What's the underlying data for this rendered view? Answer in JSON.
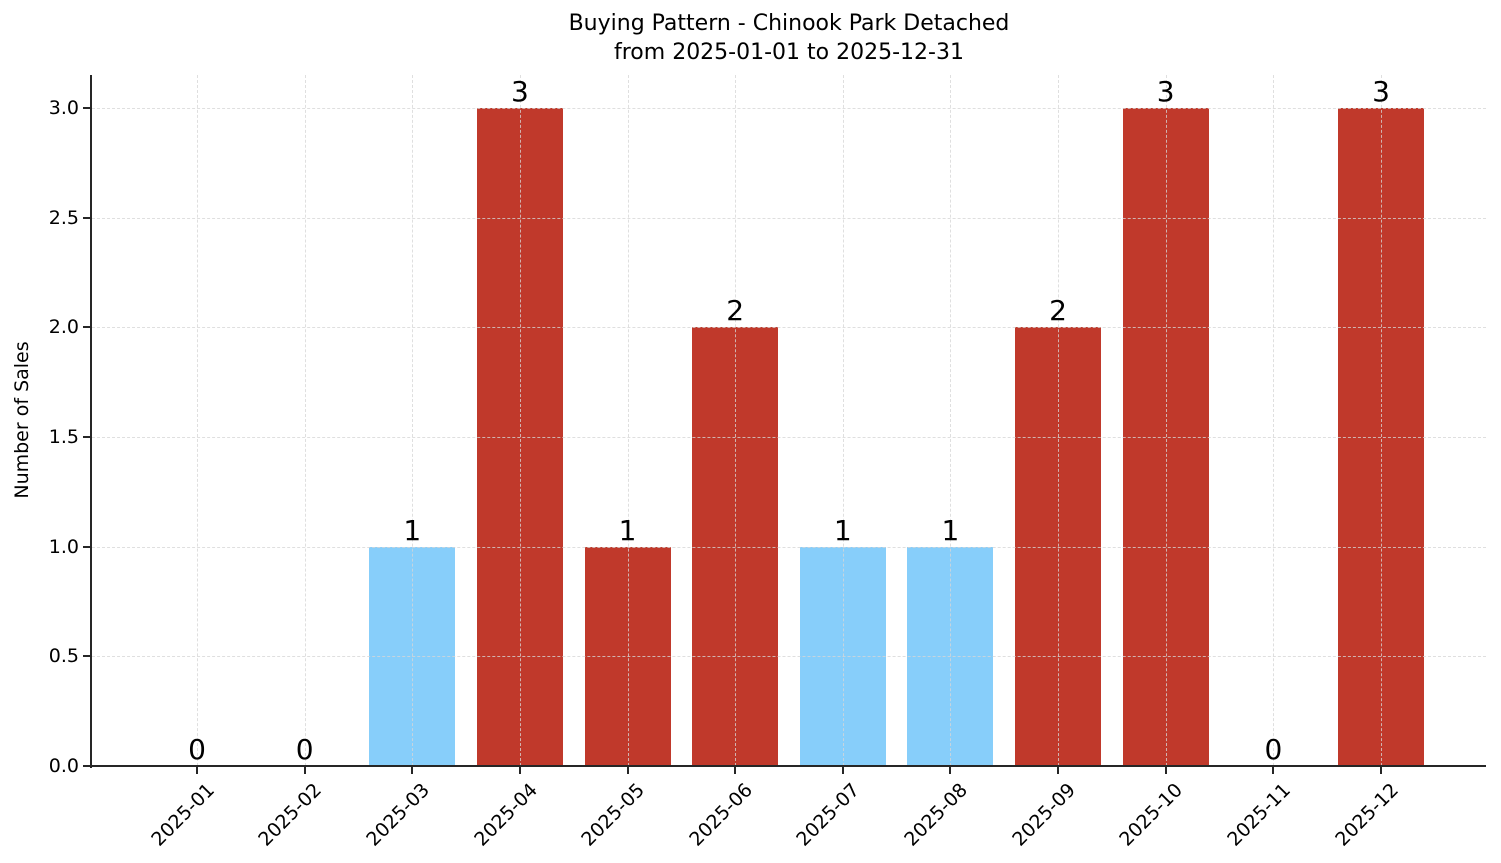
{
  "chart_data": {
    "type": "bar",
    "title": "Buying Pattern - Chinook Park Detached",
    "subtitle": "from 2025-01-01 to 2025-12-31",
    "xlabel": "",
    "ylabel": "Number of Sales",
    "categories": [
      "2025-01",
      "2025-02",
      "2025-03",
      "2025-04",
      "2025-05",
      "2025-06",
      "2025-07",
      "2025-08",
      "2025-09",
      "2025-10",
      "2025-11",
      "2025-12"
    ],
    "values": [
      0,
      0,
      1,
      3,
      1,
      2,
      1,
      1,
      2,
      3,
      0,
      3
    ],
    "value_labels": [
      "0",
      "0",
      "1",
      "3",
      "1",
      "2",
      "1",
      "1",
      "2",
      "3",
      "0",
      "3"
    ],
    "bar_colors": [
      null,
      null,
      "#87cefa",
      "#c0392b",
      "#c0392b",
      "#c0392b",
      "#87cefa",
      "#87cefa",
      "#c0392b",
      "#c0392b",
      null,
      "#c0392b"
    ],
    "ytick_labels": [
      "0.0",
      "0.5",
      "1.0",
      "1.5",
      "2.0",
      "2.5",
      "3.0"
    ],
    "ytick_values": [
      0,
      0.5,
      1,
      1.5,
      2,
      2.5,
      3
    ],
    "ylim": [
      0,
      3.15
    ],
    "xtick_rotation_deg": 45,
    "grid": true,
    "grid_style": "dashed",
    "legend": null,
    "colors": {
      "highlight_bar": "#87cefa",
      "regular_bar": "#c0392b",
      "grid": "#d6d6d6",
      "axis": "#262626",
      "text": "#000000"
    }
  }
}
